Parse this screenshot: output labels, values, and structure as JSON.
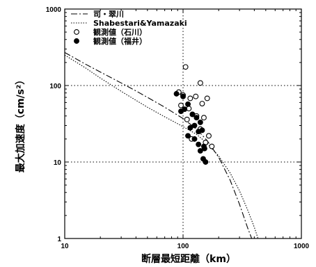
{
  "chart_data": {
    "type": "scatter",
    "xscale": "log",
    "yscale": "log",
    "xlim": [
      10,
      1000
    ],
    "ylim": [
      1,
      1000
    ],
    "xlabel": "断層最短距離（km）",
    "ylabel": "最大加速度（cm/s²）",
    "x_ticks": [
      "10",
      "100",
      "1000"
    ],
    "y_ticks": [
      "1",
      "10",
      "100",
      "1000"
    ],
    "reference_lines": {
      "x": [
        100
      ],
      "y": [
        10,
        100
      ],
      "style": "dotted"
    },
    "legend_position": "top-left",
    "series": [
      {
        "name": "司・翠川",
        "kind": "line",
        "style": "dash-dot",
        "x": [
          10,
          15,
          20,
          30,
          40,
          50,
          70,
          100,
          130,
          160,
          200,
          250,
          300,
          350,
          380
        ],
        "y": [
          270,
          190,
          150,
          108,
          85,
          70,
          52,
          37,
          27,
          19,
          11.5,
          5.8,
          2.8,
          1.4,
          1.0
        ]
      },
      {
        "name": "Shabestari&Yamazaki",
        "kind": "line",
        "style": "dotted",
        "x": [
          10,
          15,
          20,
          30,
          40,
          50,
          70,
          100,
          130,
          160,
          200,
          250,
          300,
          350,
          400,
          430
        ],
        "y": [
          250,
          170,
          125,
          84,
          64,
          52,
          39,
          29,
          23,
          17.5,
          12,
          7.2,
          4.2,
          2.4,
          1.4,
          1.0
        ]
      },
      {
        "name": "観測値（石川）",
        "kind": "points",
        "marker": "open-circle",
        "x": [
          105,
          140,
          92,
          160,
          100,
          115,
          96,
          128,
          112,
          145,
          120,
          130,
          108,
          150,
          140,
          165,
          155,
          175,
          118
        ],
        "y": [
          175,
          108,
          82,
          68,
          75,
          68,
          55,
          72,
          50,
          58,
          42,
          40,
          36,
          38,
          27,
          22,
          18,
          16,
          20
        ]
      },
      {
        "name": "観測値（福井）",
        "kind": "points",
        "marker": "filled-circle",
        "x": [
          88,
          100,
          110,
          96,
          103,
          120,
          130,
          140,
          115,
          125,
          135,
          110,
          145,
          125,
          135,
          150,
          140,
          152,
          148,
          155
        ],
        "y": [
          78,
          72,
          57,
          46,
          49,
          42,
          38,
          33,
          28,
          30,
          25,
          22,
          26,
          20,
          17,
          16,
          14,
          15,
          11,
          10
        ]
      }
    ]
  }
}
